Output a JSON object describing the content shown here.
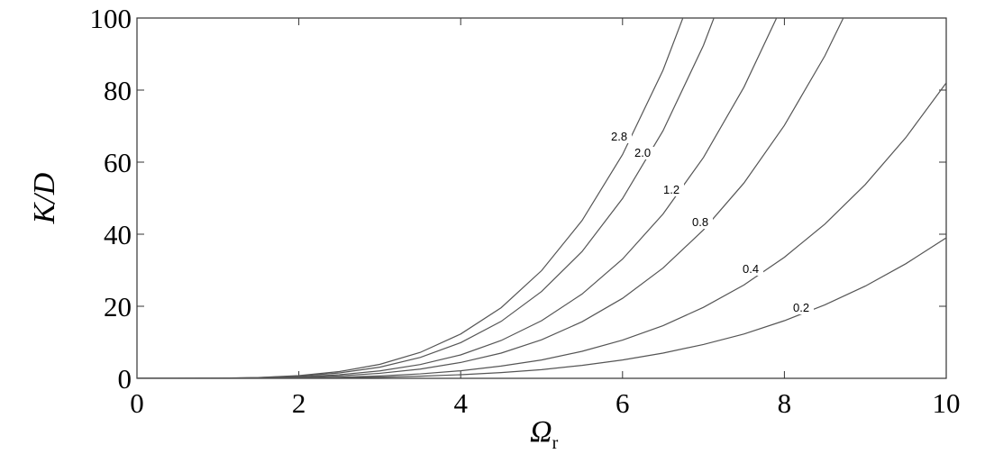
{
  "chart_data": {
    "type": "line",
    "xlabel": "Ω",
    "xlabel_subscript": "r",
    "ylabel": "K/D",
    "x": [
      0,
      0.5,
      1,
      1.5,
      2,
      2.5,
      3,
      3.5,
      4,
      4.5,
      5,
      5.5,
      6,
      6.5,
      7,
      7.5,
      8,
      8.5,
      9,
      9.5,
      10
    ],
    "series": [
      {
        "name": "0.2",
        "color": "#555555",
        "values": [
          0,
          0,
          0,
          0.02,
          0.06,
          0.15,
          0.32,
          0.59,
          1.0,
          1.6,
          2.4,
          3.6,
          5.1,
          7.0,
          9.4,
          12.3,
          16.0,
          20.4,
          25.6,
          31.8,
          39.0
        ]
      },
      {
        "name": "0.4",
        "color": "#555555",
        "values": [
          0,
          0,
          0.01,
          0.04,
          0.13,
          0.32,
          0.66,
          1.23,
          2.1,
          3.4,
          5.1,
          7.5,
          10.6,
          14.6,
          19.7,
          25.9,
          33.6,
          42.8,
          53.8,
          66.8,
          82.0
        ]
      },
      {
        "name": "0.8",
        "color": "#555555",
        "values": [
          0,
          0,
          0.02,
          0.09,
          0.27,
          0.67,
          1.39,
          2.57,
          4.4,
          7.0,
          10.7,
          15.7,
          22.2,
          30.6,
          41.2,
          54.2,
          70.2,
          89.5,
          112.5,
          null,
          null
        ]
      },
      {
        "name": "1.2",
        "color": "#555555",
        "values": [
          0,
          0,
          0.03,
          0.13,
          0.41,
          1.0,
          2.07,
          3.83,
          6.5,
          10.5,
          16.0,
          23.4,
          33.1,
          45.6,
          61.3,
          80.8,
          104.6,
          null,
          null,
          null,
          null
        ]
      },
      {
        "name": "2.0",
        "color": "#555555",
        "values": [
          0,
          0,
          0.04,
          0.19,
          0.62,
          1.5,
          3.1,
          5.8,
          9.9,
          15.8,
          24.1,
          35.2,
          49.9,
          68.7,
          92.4,
          121.8,
          null,
          null,
          null,
          null,
          null
        ]
      },
      {
        "name": "2.8",
        "color": "#555555",
        "values": [
          0,
          0,
          0.05,
          0.24,
          0.77,
          1.87,
          3.88,
          7.19,
          12.3,
          19.6,
          29.9,
          43.8,
          62.1,
          85.5,
          115.0,
          null,
          null,
          null,
          null,
          null,
          null
        ]
      }
    ],
    "xlim": [
      0,
      10
    ],
    "xticks": [
      0,
      2,
      4,
      6,
      8,
      10
    ],
    "ylim": [
      0,
      100
    ],
    "yticks": [
      0,
      20,
      40,
      60,
      80,
      100
    ]
  }
}
